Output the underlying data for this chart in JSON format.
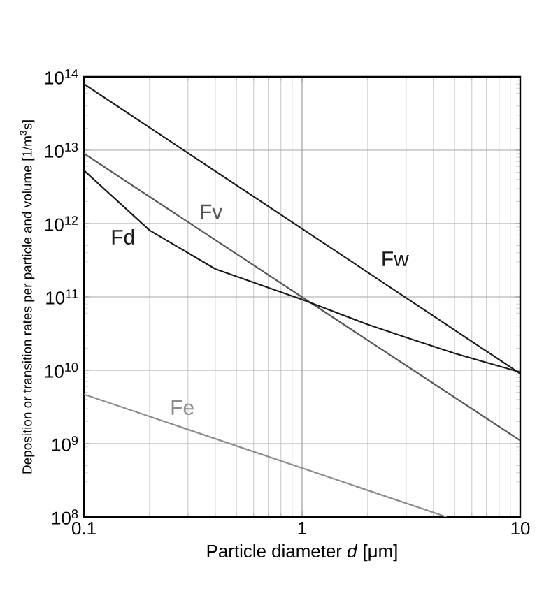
{
  "chart_data": {
    "type": "line",
    "xlabel": "Particle diameter *d* [μm]",
    "ylabel": "Deposition or transition rates per particle and volume [1/m$^{3}$s]",
    "log": "xy",
    "grid": true,
    "marker": "none",
    "line_style": "solid",
    "xlim": [
      0.1,
      10
    ],
    "xticks": [
      0.1,
      1,
      10
    ],
    "ylim": [
      100000000.0,
      100000000000000.0
    ],
    "yticks": [
      {
        "value": 100000000.0,
        "label": "10$^{8}$"
      },
      {
        "value": 1000000000.0,
        "label": "10$^{9}$"
      },
      {
        "value": 10000000000.0,
        "label": "10$^{10}$"
      },
      {
        "value": 100000000000.0,
        "label": "10$^{11}$"
      },
      {
        "value": 1000000000000.0,
        "label": "10$^{12}$"
      },
      {
        "value": 10000000000000.0,
        "label": "10$^{13}$"
      },
      {
        "value": 100000000000000.0,
        "label": "10$^{14}$"
      }
    ],
    "series": [
      {
        "name": "Fw",
        "color": "#1a1a1a",
        "x": [
          0.1,
          10
        ],
        "values": [
          80000000000000.0,
          9000000000.0
        ]
      },
      {
        "name": "Fv",
        "color": "#555555",
        "x": [
          0.1,
          10
        ],
        "values": [
          9000000000000.0,
          1100000000.0
        ]
      },
      {
        "name": "Fd",
        "color": "#1a1a1a",
        "x": [
          0.1,
          0.2,
          0.4,
          1,
          2,
          3,
          5,
          10
        ],
        "values": [
          5300000000000.0,
          810000000000.0,
          240000000000.0,
          92000000000.0,
          42000000000.0,
          28000000000.0,
          17000000000.0,
          9400000000.0
        ]
      },
      {
        "name": "Fe",
        "color": "#8c8c8c",
        "x": [
          0.1,
          4.6
        ],
        "values": [
          4700000000.0,
          100000000.0
        ]
      }
    ]
  }
}
